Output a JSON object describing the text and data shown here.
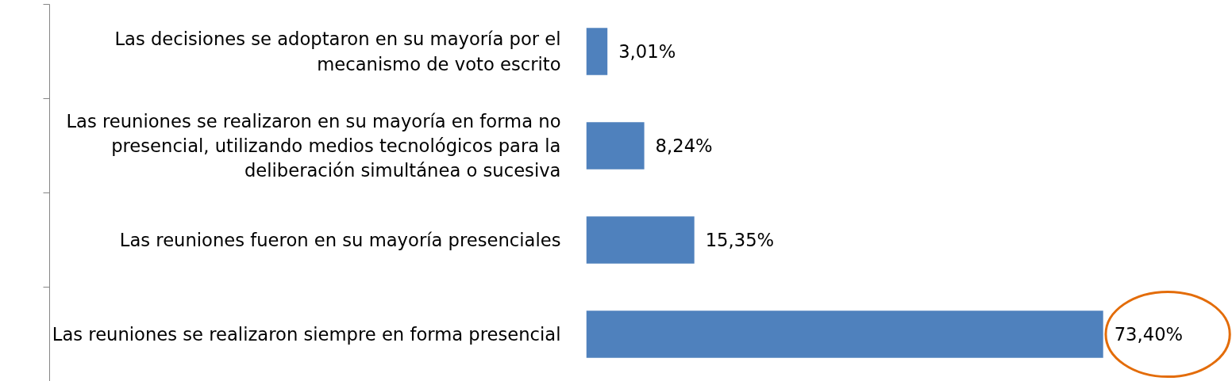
{
  "chart_data": {
    "type": "bar",
    "orientation": "horizontal",
    "categories": [
      "Las decisiones se adoptaron en su mayoría por el\nmecanismo de voto escrito",
      "Las reuniones se realizaron en su mayoría en forma no\npresencial, utilizando medios tecnológicos para la\ndeliberación simultánea o sucesiva",
      "Las reuniones fueron en su mayoría presenciales",
      "Las reuniones se realizaron siempre en forma presencial"
    ],
    "values": [
      3.01,
      8.24,
      15.35,
      73.4
    ],
    "value_labels": [
      "3,01%",
      "8,24%",
      "15,35%",
      "73,40%"
    ],
    "color": "#4f81bd",
    "grid": false
  }
}
